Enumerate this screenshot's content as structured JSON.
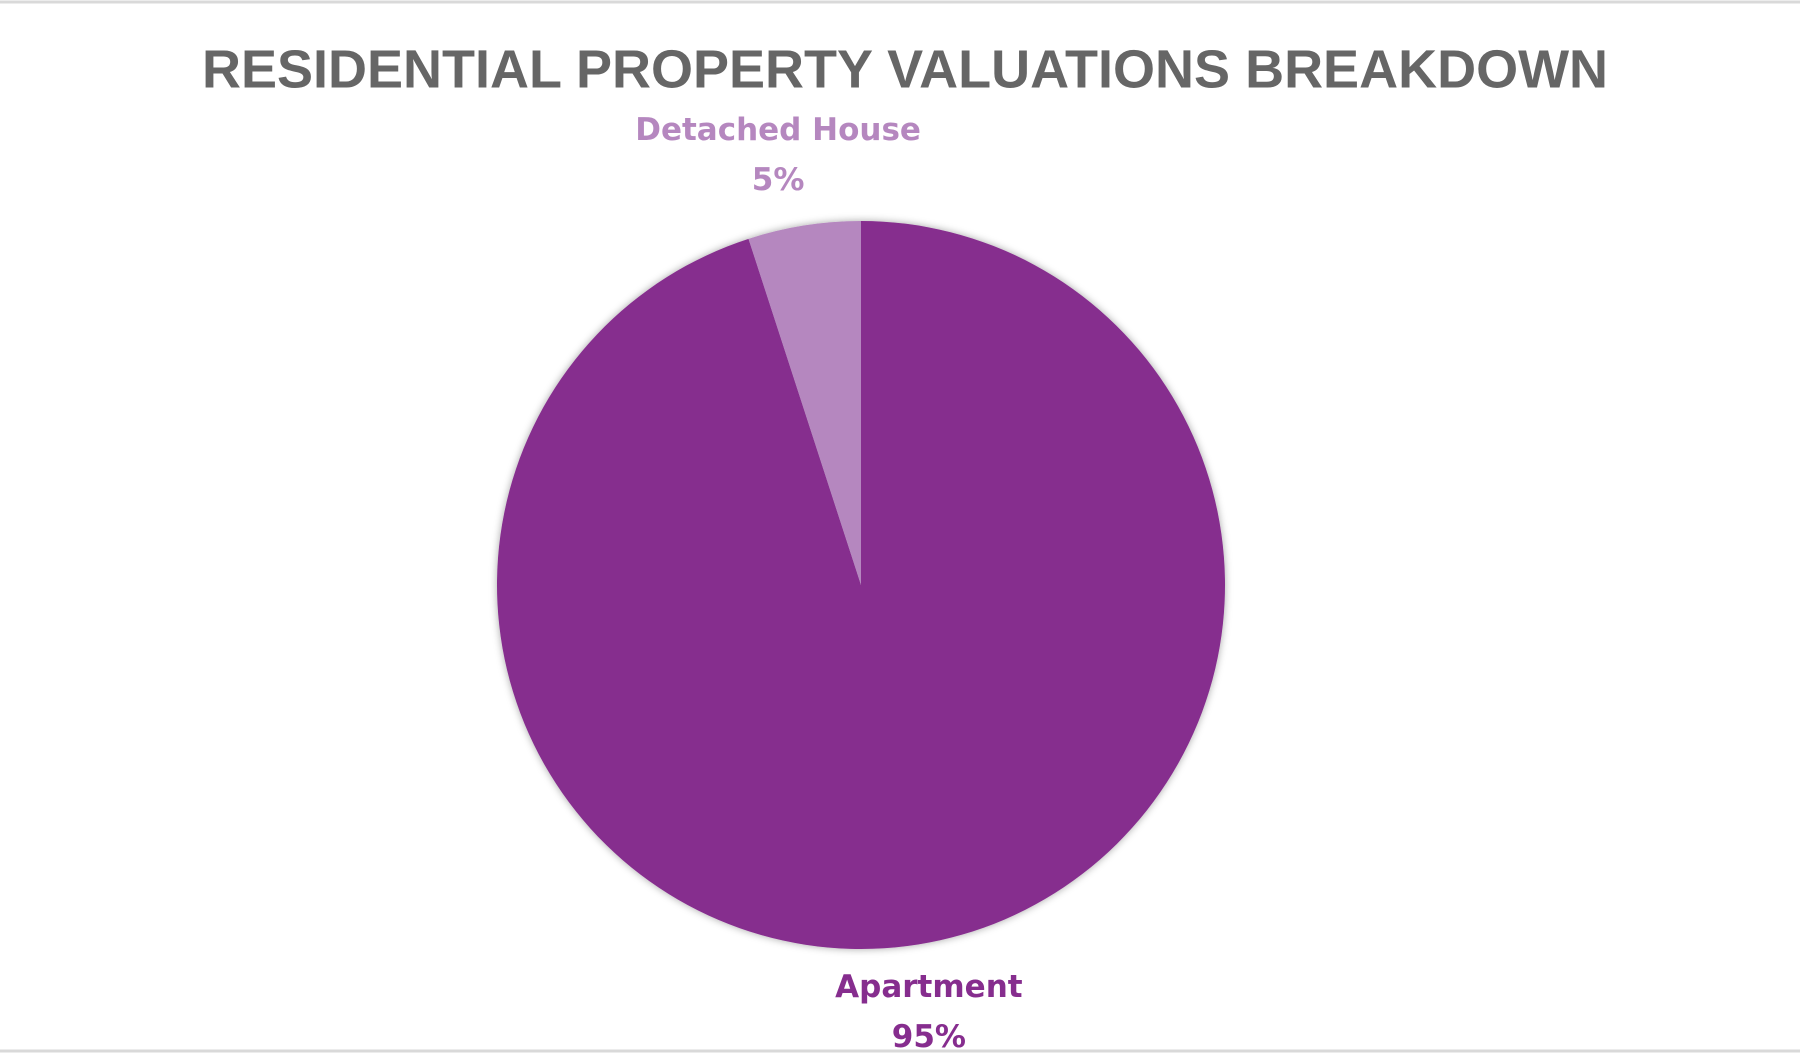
{
  "chart_data": {
    "type": "pie",
    "title": "RESIDENTIAL PROPERTY VALUATIONS BREAKDOWN",
    "categories": [
      "Apartment",
      "Detached House"
    ],
    "values": [
      95,
      5
    ],
    "value_labels": [
      "95%",
      "5%"
    ],
    "colors": [
      "#862d8e",
      "#b587bf"
    ]
  }
}
